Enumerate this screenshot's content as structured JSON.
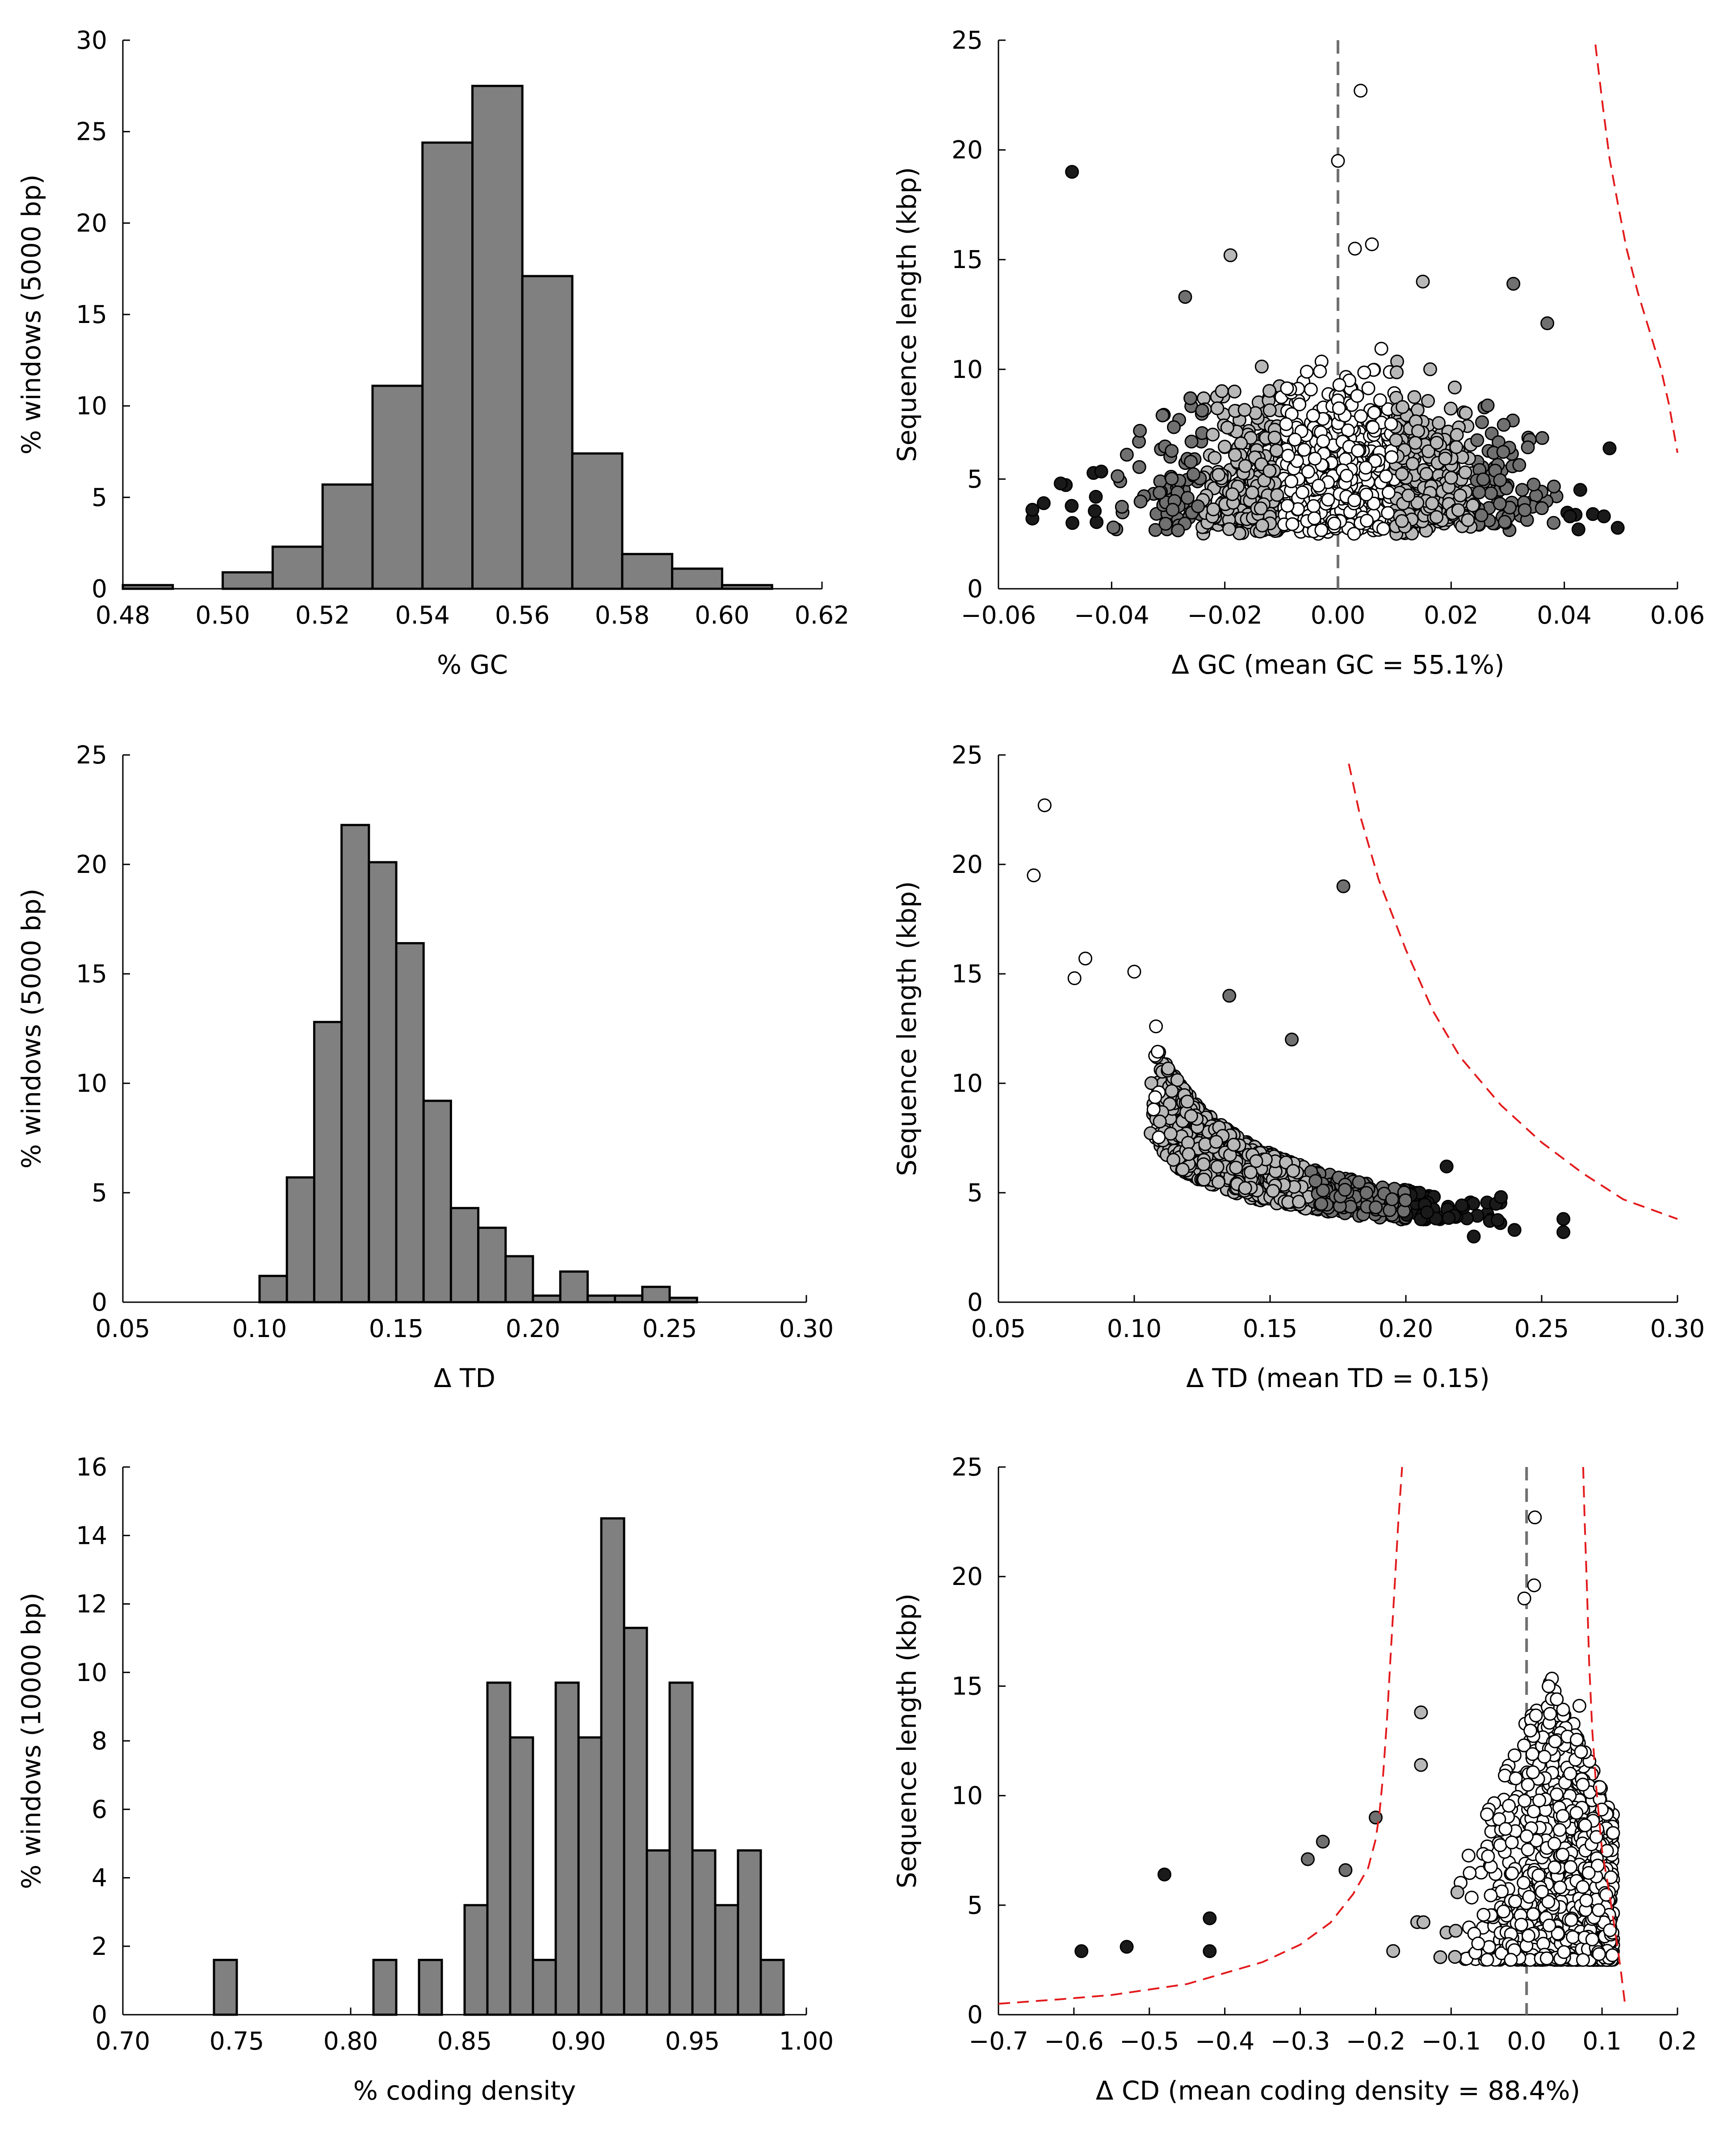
{
  "chart_data": [
    {
      "id": "gc-hist",
      "type": "bar",
      "xlabel": "% GC",
      "ylabel": "% windows (5000 bp)",
      "xlim": [
        0.48,
        0.62
      ],
      "ylim": [
        0,
        30
      ],
      "xticks": [
        "0.48",
        "0.50",
        "0.52",
        "0.54",
        "0.56",
        "0.58",
        "0.60",
        "0.62"
      ],
      "yticks": [
        "0",
        "5",
        "10",
        "15",
        "20",
        "25",
        "30"
      ],
      "bin_edges": [
        0.48,
        0.49,
        0.5,
        0.51,
        0.52,
        0.53,
        0.54,
        0.55,
        0.56,
        0.57,
        0.58,
        0.59,
        0.6,
        0.61
      ],
      "values": [
        0.2,
        0.0,
        0.9,
        2.3,
        5.7,
        11.1,
        24.4,
        27.5,
        17.1,
        7.4,
        1.9,
        1.1,
        0.2
      ],
      "bar_color": "#808080",
      "grid": false
    },
    {
      "id": "gc-scatter",
      "type": "scatter",
      "xlabel": "Δ GC (mean GC = 55.1%)",
      "ylabel": "Sequence length (kbp)",
      "xlim": [
        -0.06,
        0.06
      ],
      "ylim": [
        0,
        25
      ],
      "xticks": [
        "−0.06",
        "−0.04",
        "−0.02",
        "0.00",
        "0.02",
        "0.04",
        "0.06"
      ],
      "yticks": [
        "0",
        "5",
        "10",
        "15",
        "20",
        "25"
      ],
      "vline_x": 0,
      "cloud": {
        "center": 0.0,
        "sd": 0.015,
        "inner": 0.01,
        "mid": 0.025
      },
      "bound_curves": [
        {
          "x_values": [
            0.0455,
            0.0468,
            0.048,
            0.0495,
            0.051,
            0.053,
            0.055,
            0.057,
            0.0585,
            0.06
          ],
          "y_values": [
            24.8,
            22.0,
            19.6,
            17.5,
            15.5,
            13.5,
            11.8,
            10.1,
            8.4,
            6.2
          ]
        }
      ],
      "points": [
        {
          "x": -0.047,
          "y": 19.0
        },
        {
          "x": 0.004,
          "y": 22.7
        },
        {
          "x": 0.0,
          "y": 19.5
        },
        {
          "x": -0.054,
          "y": 3.2
        },
        {
          "x": -0.054,
          "y": 3.6
        },
        {
          "x": -0.052,
          "y": 3.9
        },
        {
          "x": -0.049,
          "y": 4.8
        },
        {
          "x": 0.048,
          "y": 6.4
        },
        {
          "x": 0.041,
          "y": 3.3
        },
        {
          "x": 0.047,
          "y": 3.3
        },
        {
          "x": 0.031,
          "y": 13.9
        },
        {
          "x": 0.037,
          "y": 12.1
        },
        {
          "x": -0.031,
          "y": 7.9
        },
        {
          "x": -0.035,
          "y": 7.2
        },
        {
          "x": -0.027,
          "y": 13.3
        },
        {
          "x": -0.019,
          "y": 15.2
        },
        {
          "x": 0.015,
          "y": 14.0
        },
        {
          "x": 0.006,
          "y": 15.7
        },
        {
          "x": 0.003,
          "y": 15.5
        }
      ],
      "colors": {
        "inner": "#ffffff",
        "mid": "#b8b8b8",
        "outer": "#707070",
        "extreme": "#1a1a1a"
      },
      "bound_color": "#e31a1c",
      "grid": false
    },
    {
      "id": "td-hist",
      "type": "bar",
      "xlabel": "Δ TD",
      "ylabel": "% windows (5000 bp)",
      "xlim": [
        0.05,
        0.3
      ],
      "ylim": [
        0,
        25
      ],
      "xticks": [
        "0.05",
        "0.10",
        "0.15",
        "0.20",
        "0.25",
        "0.30"
      ],
      "yticks": [
        "0",
        "5",
        "10",
        "15",
        "20",
        "25"
      ],
      "bin_edges": [
        0.1,
        0.11,
        0.12,
        0.13,
        0.14,
        0.15,
        0.16,
        0.17,
        0.18,
        0.19,
        0.2,
        0.21,
        0.22,
        0.23,
        0.24,
        0.25,
        0.26
      ],
      "values": [
        1.2,
        5.7,
        12.8,
        21.8,
        20.1,
        16.4,
        9.2,
        4.3,
        3.4,
        2.1,
        0.3,
        1.4,
        0.3,
        0.3,
        0.7,
        0.2
      ],
      "bar_color": "#808080",
      "grid": false
    },
    {
      "id": "td-scatter",
      "type": "scatter",
      "xlabel": "Δ TD (mean TD = 0.15)",
      "ylabel": "Sequence length (kbp)",
      "xlim": [
        0.05,
        0.3
      ],
      "ylim": [
        0,
        25
      ],
      "xticks": [
        "0.05",
        "0.10",
        "0.15",
        "0.20",
        "0.25",
        "0.30"
      ],
      "yticks": [
        "0",
        "5",
        "10",
        "15",
        "20",
        "25"
      ],
      "bound_curves": [
        {
          "x_values": [
            0.179,
            0.183,
            0.19,
            0.2,
            0.21,
            0.22,
            0.235,
            0.25,
            0.265,
            0.28,
            0.3
          ],
          "y_values": [
            24.6,
            22.3,
            19.3,
            16.1,
            13.3,
            11.2,
            9.0,
            7.3,
            5.9,
            4.7,
            3.8
          ]
        }
      ],
      "points": [
        {
          "x": 0.063,
          "y": 19.5
        },
        {
          "x": 0.067,
          "y": 22.7
        },
        {
          "x": 0.177,
          "y": 19.0
        },
        {
          "x": 0.078,
          "y": 14.8
        },
        {
          "x": 0.082,
          "y": 15.7
        },
        {
          "x": 0.1,
          "y": 15.1
        },
        {
          "x": 0.135,
          "y": 14.0
        },
        {
          "x": 0.108,
          "y": 12.6
        },
        {
          "x": 0.158,
          "y": 12.0
        },
        {
          "x": 0.258,
          "y": 3.8
        },
        {
          "x": 0.258,
          "y": 3.2
        },
        {
          "x": 0.24,
          "y": 3.3
        },
        {
          "x": 0.235,
          "y": 4.8
        },
        {
          "x": 0.215,
          "y": 6.2
        },
        {
          "x": 0.225,
          "y": 3.0
        }
      ],
      "colors": {
        "inner": "#ffffff",
        "mid": "#b8b8b8",
        "outer": "#707070",
        "extreme": "#1a1a1a"
      },
      "bound_color": "#e31a1c",
      "grid": false
    },
    {
      "id": "cd-hist",
      "type": "bar",
      "xlabel": "% coding density",
      "ylabel": "% windows (10000 bp)",
      "xlim": [
        0.7,
        1.0
      ],
      "ylim": [
        0,
        16
      ],
      "xticks": [
        "0.70",
        "0.75",
        "0.80",
        "0.85",
        "0.90",
        "0.95",
        "1.00"
      ],
      "yticks": [
        "0",
        "2",
        "4",
        "6",
        "8",
        "10",
        "12",
        "14",
        "16"
      ],
      "bin_edges": [
        0.74,
        0.75,
        0.76,
        0.77,
        0.78,
        0.79,
        0.8,
        0.81,
        0.82,
        0.83,
        0.84,
        0.85,
        0.86,
        0.87,
        0.88,
        0.89,
        0.9,
        0.91,
        0.92,
        0.93,
        0.94,
        0.95,
        0.96,
        0.97,
        0.98,
        0.99
      ],
      "values": [
        1.6,
        0.0,
        0.0,
        0.0,
        0.0,
        0.0,
        0.0,
        1.6,
        0.0,
        1.6,
        0.0,
        3.2,
        9.7,
        8.1,
        1.6,
        9.7,
        8.1,
        14.5,
        11.3,
        4.8,
        9.7,
        4.8,
        3.2,
        4.8,
        1.6
      ],
      "bar_color": "#808080",
      "grid": false
    },
    {
      "id": "cd-scatter",
      "type": "scatter",
      "xlabel": "Δ CD (mean coding density = 88.4%)",
      "ylabel": "Sequence length (kbp)",
      "xlim": [
        -0.7,
        0.2
      ],
      "ylim": [
        0,
        25
      ],
      "xticks": [
        "−0.7",
        "−0.6",
        "−0.5",
        "−0.4",
        "−0.3",
        "−0.2",
        "−0.1",
        "0.0",
        "0.1",
        "0.2"
      ],
      "yticks": [
        "0",
        "5",
        "10",
        "15",
        "20",
        "25"
      ],
      "vline_x": 0,
      "bound_curves": [
        {
          "x_values": [
            -0.7,
            -0.62,
            -0.55,
            -0.45,
            -0.35,
            -0.3,
            -0.26,
            -0.23,
            -0.21,
            -0.2,
            -0.195,
            -0.19,
            -0.185,
            -0.18,
            -0.175,
            -0.17,
            -0.165
          ],
          "y_values": [
            0.5,
            0.7,
            0.9,
            1.4,
            2.4,
            3.2,
            4.2,
            5.5,
            6.7,
            8.0,
            9.2,
            11.0,
            13.5,
            16.5,
            19.5,
            22.5,
            25.0
          ]
        },
        {
          "x_values": [
            0.075,
            0.077,
            0.08,
            0.083,
            0.087,
            0.092,
            0.1,
            0.11,
            0.12,
            0.125,
            0.13
          ],
          "y_values": [
            25.0,
            22.5,
            19.5,
            16.0,
            13.0,
            10.5,
            7.5,
            5.5,
            3.2,
            2.0,
            0.6
          ]
        }
      ],
      "points": [
        {
          "x": 0.011,
          "y": 22.7
        },
        {
          "x": 0.01,
          "y": 19.6
        },
        {
          "x": -0.003,
          "y": 19.0
        },
        {
          "x": -0.59,
          "y": 2.9
        },
        {
          "x": -0.53,
          "y": 3.1
        },
        {
          "x": -0.48,
          "y": 6.4
        },
        {
          "x": -0.42,
          "y": 4.4
        },
        {
          "x": -0.42,
          "y": 2.9
        },
        {
          "x": -0.14,
          "y": 13.8
        },
        {
          "x": -0.14,
          "y": 11.4
        },
        {
          "x": -0.2,
          "y": 9.0
        },
        {
          "x": -0.27,
          "y": 7.9
        },
        {
          "x": -0.29,
          "y": 7.1
        },
        {
          "x": -0.24,
          "y": 6.6
        },
        {
          "x": 0.04,
          "y": 14.4
        },
        {
          "x": 0.07,
          "y": 14.1
        }
      ],
      "colors": {
        "inner": "#ffffff",
        "mid": "#b8b8b8",
        "outer": "#707070",
        "extreme": "#1a1a1a"
      },
      "bound_color": "#e31a1c",
      "grid": false
    }
  ]
}
